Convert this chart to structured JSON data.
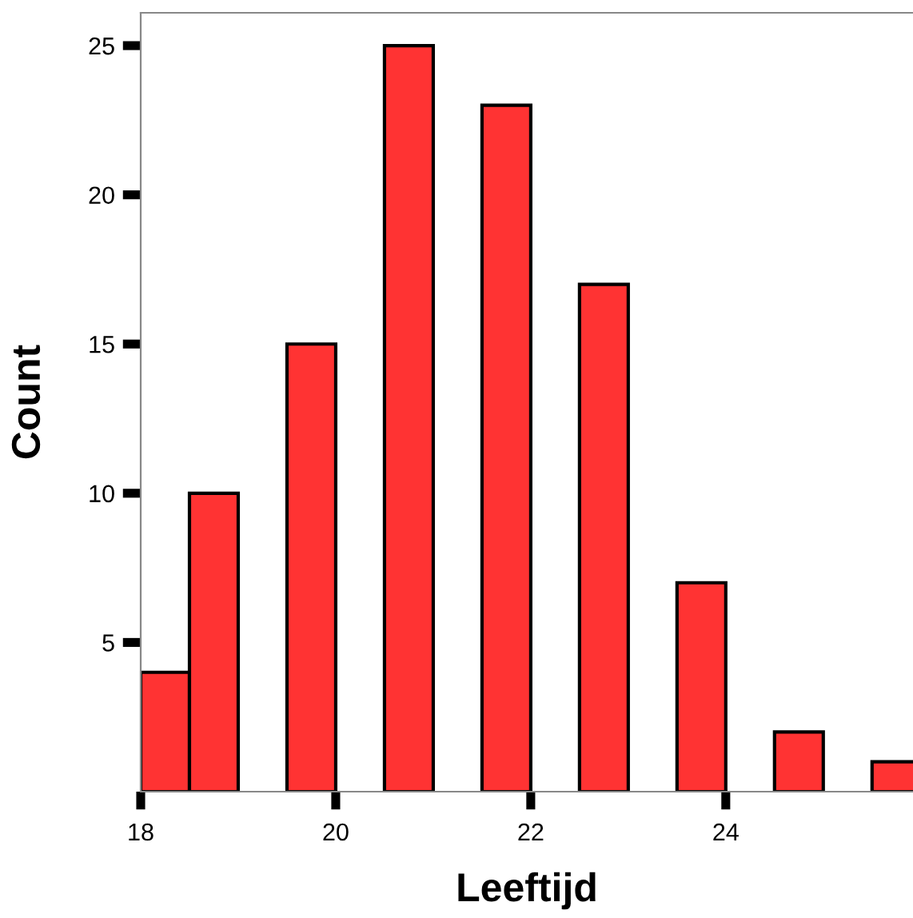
{
  "chart_data": {
    "type": "histogram",
    "xlabel": "Leeftijd",
    "ylabel": "Count",
    "bins": [
      18,
      18.5,
      19,
      19.5,
      20,
      20.5,
      21,
      21.5,
      22,
      22.5,
      23,
      23.5,
      24,
      24.5,
      25,
      25.5,
      26
    ],
    "values": [
      4,
      10,
      0,
      15,
      0,
      25,
      0,
      23,
      0,
      17,
      0,
      7,
      0,
      2,
      0,
      1
    ],
    "color": "#ff3333",
    "xlim": [
      18,
      25.92
    ],
    "xticks": [
      18,
      20,
      22,
      24
    ],
    "ylim": [
      0,
      26.1
    ],
    "yticks": [
      5,
      10,
      15,
      20,
      25
    ],
    "grid": false,
    "legend": false
  }
}
